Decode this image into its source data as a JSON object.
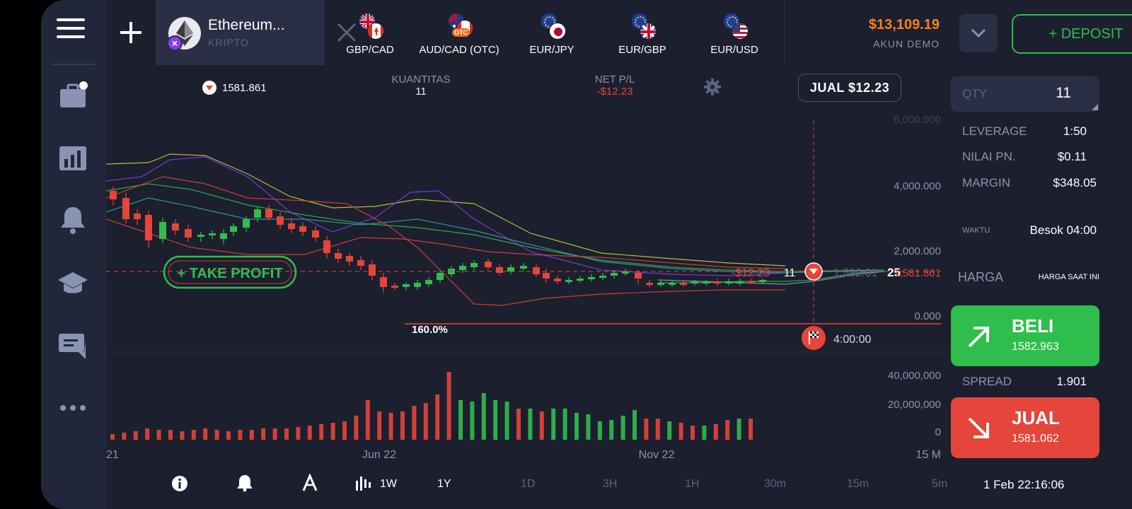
{
  "asset": {
    "name": "Ethereum...",
    "category": "KRIPTO"
  },
  "pairs": [
    {
      "label": "GBP/CAD",
      "icon": "gb-ca-flags"
    },
    {
      "label": "AUD/CAD (OTC)",
      "icon": "au-ca-flags",
      "badge": "OTC"
    },
    {
      "label": "EUR/JPY",
      "icon": "eu-jp-flags"
    },
    {
      "label": "EUR/GBP",
      "icon": "eu-gb-flags"
    },
    {
      "label": "EUR/USD",
      "icon": "eu-us-flags"
    }
  ],
  "account": {
    "balance": "$13,109.19",
    "type": "AKUN DEMO",
    "deposit_label": "+ DEPOSIT"
  },
  "position": {
    "open_price": "1581.861",
    "qty_label": "KUANTITAS",
    "qty": "11",
    "pnl_label": "NET P/L",
    "pnl": "-$12.23",
    "sell_button": "JUAL $12.23"
  },
  "chart": {
    "take_profit_label": "+ TAKE PROFIT",
    "pnl_tag": "-$12.23",
    "qty_tag": "11",
    "pos_price_tag": "1,582.01",
    "pos_sec": "25",
    "price_tag": "1,581.861",
    "percent_label": "160.0%",
    "expiry_label": "4:00:00"
  },
  "chart_data": {
    "type": "candlestick",
    "price_axis_ticks": [
      "6,000.000",
      "4,000.000",
      "2,000.000",
      "0.000"
    ],
    "volume_axis_ticks": [
      "40,000,000",
      "20,000,000",
      "0"
    ],
    "x_ticks": [
      "21",
      "Jun 22",
      "Nov 22",
      "15 M"
    ],
    "current_price": 1581.861
  },
  "timeframes": [
    "1W",
    "1Y",
    "1D",
    "3H",
    "1H",
    "30m",
    "15m",
    "5m"
  ],
  "active_timeframe": "1Y",
  "datetime": "1 Feb 22:16:06",
  "order": {
    "qty_label": "QTY",
    "qty": "11",
    "leverage_label": "LEVERAGE",
    "leverage": "1:50",
    "pip_label": "NILAI PN.",
    "pip": "$0.11",
    "margin_label": "MARGIN",
    "margin": "$348.05",
    "time_label": "WAKTU",
    "time": "Besok 04:00",
    "price_label": "HARGA",
    "price_mode": "HARGA SAAT INI",
    "buy_label": "BELI",
    "buy_price": "1582.963",
    "spread_label": "SPREAD",
    "spread": "1.901",
    "sell_label": "JUAL",
    "sell_price": "1581.062"
  },
  "colors": {
    "bg": "#1c1f2e",
    "green": "#2fbe4c",
    "red": "#e5453a",
    "orange": "#f7821e"
  }
}
